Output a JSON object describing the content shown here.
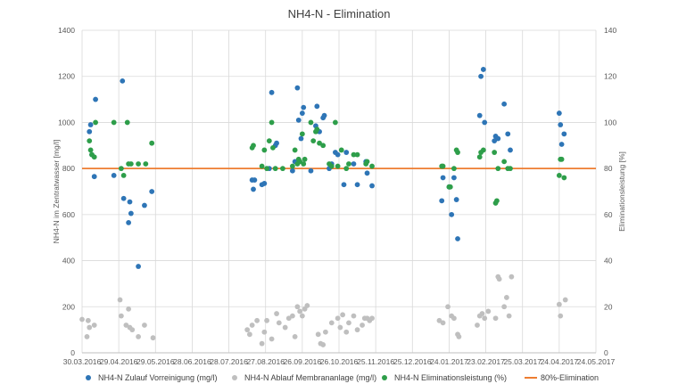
{
  "chart_data": {
    "type": "scatter",
    "title": "NH4-N - Elimination",
    "ylabel": "NH4-N im Zentratwasser [mg/l]",
    "y2label": "Eliminationsleistung [%]",
    "xlabel": "",
    "x_range": [
      "2016-03-30",
      "2017-05-24"
    ],
    "x_ticks": [
      "30.03.2016",
      "29.04.2016",
      "29.05.2016",
      "28.06.2016",
      "28.07.2016",
      "27.08.2016",
      "26.09.2016",
      "26.10.2016",
      "25.11.2016",
      "25.12.2016",
      "24.01.2017",
      "23.02.2017",
      "25.03.2017",
      "24.04.2017",
      "24.05.2017"
    ],
    "ylim": [
      0,
      1400
    ],
    "y_ticks": [
      0,
      200,
      400,
      600,
      800,
      1000,
      1200,
      1400
    ],
    "y2lim": [
      0,
      140
    ],
    "y2_ticks": [
      0,
      20,
      40,
      60,
      80,
      100,
      120,
      140
    ],
    "grid": true,
    "legend_position": "bottom",
    "colors": {
      "zulauf": "#2E75B6",
      "ablauf": "#BFBFBF",
      "elim": "#2E9E4A",
      "line80": "#ED7D31",
      "grid": "#D9D9D9",
      "axis": "#BFBFBF"
    },
    "series": [
      {
        "name": "NH4-N Zulauf Vorreinigung (mg/l)",
        "axis": "left",
        "marker": "dot",
        "color": "#2E75B6",
        "points": [
          [
            "2016-04-05",
            960
          ],
          [
            "2016-04-06",
            990
          ],
          [
            "2016-04-07",
            860
          ],
          [
            "2016-04-09",
            765
          ],
          [
            "2016-04-10",
            1100
          ],
          [
            "2016-04-25",
            770
          ],
          [
            "2016-05-02",
            1180
          ],
          [
            "2016-05-03",
            670
          ],
          [
            "2016-05-07",
            565
          ],
          [
            "2016-05-08",
            655
          ],
          [
            "2016-05-09",
            605
          ],
          [
            "2016-05-15",
            375
          ],
          [
            "2016-05-20",
            640
          ],
          [
            "2016-05-26",
            700
          ],
          [
            "2016-08-16",
            750
          ],
          [
            "2016-08-17",
            710
          ],
          [
            "2016-08-18",
            750
          ],
          [
            "2016-08-24",
            730
          ],
          [
            "2016-08-26",
            735
          ],
          [
            "2016-08-30",
            800
          ],
          [
            "2016-09-01",
            1130
          ],
          [
            "2016-09-04",
            900
          ],
          [
            "2016-09-05",
            910
          ],
          [
            "2016-09-18",
            790
          ],
          [
            "2016-09-20",
            830
          ],
          [
            "2016-09-22",
            1150
          ],
          [
            "2016-09-23",
            1010
          ],
          [
            "2016-09-25",
            930
          ],
          [
            "2016-09-26",
            1040
          ],
          [
            "2016-09-27",
            1065
          ],
          [
            "2016-10-03",
            790
          ],
          [
            "2016-10-07",
            985
          ],
          [
            "2016-10-08",
            1070
          ],
          [
            "2016-10-10",
            960
          ],
          [
            "2016-10-13",
            1020
          ],
          [
            "2016-10-14",
            1030
          ],
          [
            "2016-10-18",
            800
          ],
          [
            "2016-10-20",
            820
          ],
          [
            "2016-10-23",
            870
          ],
          [
            "2016-10-25",
            860
          ],
          [
            "2016-10-30",
            730
          ],
          [
            "2016-11-01",
            870
          ],
          [
            "2016-11-07",
            820
          ],
          [
            "2016-11-10",
            730
          ],
          [
            "2016-11-17",
            830
          ],
          [
            "2016-11-18",
            780
          ],
          [
            "2016-11-22",
            725
          ],
          [
            "2017-01-18",
            660
          ],
          [
            "2017-01-19",
            760
          ],
          [
            "2017-01-24",
            720
          ],
          [
            "2017-01-26",
            600
          ],
          [
            "2017-01-28",
            760
          ],
          [
            "2017-01-30",
            665
          ],
          [
            "2017-01-31",
            495
          ],
          [
            "2017-02-18",
            1030
          ],
          [
            "2017-02-19",
            1200
          ],
          [
            "2017-02-21",
            1230
          ],
          [
            "2017-02-22",
            1000
          ],
          [
            "2017-03-02",
            920
          ],
          [
            "2017-03-03",
            940
          ],
          [
            "2017-03-05",
            930
          ],
          [
            "2017-03-10",
            1080
          ],
          [
            "2017-03-13",
            950
          ],
          [
            "2017-03-15",
            880
          ],
          [
            "2017-04-24",
            1040
          ],
          [
            "2017-04-25",
            990
          ],
          [
            "2017-04-26",
            905
          ],
          [
            "2017-04-28",
            950
          ]
        ]
      },
      {
        "name": "NH4-N Ablauf Membrananlage (mg/l)",
        "axis": "left",
        "marker": "dot",
        "color": "#BFBFBF",
        "points": [
          [
            "2016-03-30",
            145
          ],
          [
            "2016-04-03",
            70
          ],
          [
            "2016-04-04",
            140
          ],
          [
            "2016-04-05",
            110
          ],
          [
            "2016-04-09",
            120
          ],
          [
            "2016-04-30",
            230
          ],
          [
            "2016-05-01",
            160
          ],
          [
            "2016-05-05",
            120
          ],
          [
            "2016-05-07",
            190
          ],
          [
            "2016-05-08",
            110
          ],
          [
            "2016-05-10",
            100
          ],
          [
            "2016-05-15",
            70
          ],
          [
            "2016-05-20",
            120
          ],
          [
            "2016-05-27",
            65
          ],
          [
            "2016-08-12",
            100
          ],
          [
            "2016-08-14",
            80
          ],
          [
            "2016-08-16",
            120
          ],
          [
            "2016-08-20",
            140
          ],
          [
            "2016-08-24",
            40
          ],
          [
            "2016-08-26",
            90
          ],
          [
            "2016-08-28",
            140
          ],
          [
            "2016-09-01",
            60
          ],
          [
            "2016-09-05",
            170
          ],
          [
            "2016-09-07",
            130
          ],
          [
            "2016-09-12",
            110
          ],
          [
            "2016-09-15",
            150
          ],
          [
            "2016-09-18",
            160
          ],
          [
            "2016-09-20",
            70
          ],
          [
            "2016-09-22",
            200
          ],
          [
            "2016-09-24",
            180
          ],
          [
            "2016-09-26",
            160
          ],
          [
            "2016-09-28",
            190
          ],
          [
            "2016-09-30",
            205
          ],
          [
            "2016-10-09",
            80
          ],
          [
            "2016-10-11",
            40
          ],
          [
            "2016-10-13",
            35
          ],
          [
            "2016-10-15",
            90
          ],
          [
            "2016-10-20",
            130
          ],
          [
            "2016-10-25",
            150
          ],
          [
            "2016-10-27",
            110
          ],
          [
            "2016-10-29",
            165
          ],
          [
            "2016-11-01",
            90
          ],
          [
            "2016-11-03",
            130
          ],
          [
            "2016-11-07",
            160
          ],
          [
            "2016-11-10",
            100
          ],
          [
            "2016-11-14",
            120
          ],
          [
            "2016-11-16",
            150
          ],
          [
            "2016-11-18",
            150
          ],
          [
            "2016-11-20",
            140
          ],
          [
            "2016-11-22",
            150
          ],
          [
            "2017-01-16",
            140
          ],
          [
            "2017-01-19",
            130
          ],
          [
            "2017-01-23",
            200
          ],
          [
            "2017-01-26",
            160
          ],
          [
            "2017-01-28",
            150
          ],
          [
            "2017-01-31",
            80
          ],
          [
            "2017-02-01",
            70
          ],
          [
            "2017-02-16",
            120
          ],
          [
            "2017-02-18",
            160
          ],
          [
            "2017-02-20",
            170
          ],
          [
            "2017-02-22",
            150
          ],
          [
            "2017-02-25",
            180
          ],
          [
            "2017-03-03",
            150
          ],
          [
            "2017-03-05",
            330
          ],
          [
            "2017-03-06",
            320
          ],
          [
            "2017-03-10",
            200
          ],
          [
            "2017-03-12",
            240
          ],
          [
            "2017-03-14",
            160
          ],
          [
            "2017-03-16",
            330
          ],
          [
            "2017-04-24",
            210
          ],
          [
            "2017-04-25",
            160
          ],
          [
            "2017-04-29",
            230
          ]
        ]
      },
      {
        "name": "NH4-N Eliminationsleistung (%)",
        "axis": "right",
        "marker": "dot",
        "color": "#2E9E4A",
        "points": [
          [
            "2016-04-05",
            92
          ],
          [
            "2016-04-06",
            88
          ],
          [
            "2016-04-07",
            86
          ],
          [
            "2016-04-09",
            85
          ],
          [
            "2016-04-10",
            100
          ],
          [
            "2016-04-25",
            100
          ],
          [
            "2016-05-01",
            80
          ],
          [
            "2016-05-03",
            77
          ],
          [
            "2016-05-06",
            100
          ],
          [
            "2016-05-07",
            82
          ],
          [
            "2016-05-09",
            82
          ],
          [
            "2016-05-15",
            82
          ],
          [
            "2016-05-21",
            82
          ],
          [
            "2016-05-26",
            91
          ],
          [
            "2016-08-16",
            89
          ],
          [
            "2016-08-17",
            90
          ],
          [
            "2016-08-24",
            81
          ],
          [
            "2016-08-26",
            88
          ],
          [
            "2016-08-28",
            80
          ],
          [
            "2016-08-30",
            92
          ],
          [
            "2016-09-01",
            100
          ],
          [
            "2016-09-02",
            89
          ],
          [
            "2016-09-04",
            80
          ],
          [
            "2016-09-10",
            80
          ],
          [
            "2016-09-18",
            81
          ],
          [
            "2016-09-20",
            88
          ],
          [
            "2016-09-22",
            82
          ],
          [
            "2016-09-23",
            84
          ],
          [
            "2016-09-24",
            83
          ],
          [
            "2016-09-26",
            95
          ],
          [
            "2016-09-27",
            82
          ],
          [
            "2016-09-28",
            84
          ],
          [
            "2016-10-03",
            100
          ],
          [
            "2016-10-05",
            92
          ],
          [
            "2016-10-07",
            96
          ],
          [
            "2016-10-08",
            97
          ],
          [
            "2016-10-10",
            91
          ],
          [
            "2016-10-13",
            90
          ],
          [
            "2016-10-18",
            82
          ],
          [
            "2016-10-20",
            81
          ],
          [
            "2016-10-23",
            100
          ],
          [
            "2016-10-25",
            81
          ],
          [
            "2016-10-28",
            88
          ],
          [
            "2016-11-01",
            80
          ],
          [
            "2016-11-03",
            82
          ],
          [
            "2016-11-07",
            86
          ],
          [
            "2016-11-10",
            86
          ],
          [
            "2016-11-17",
            82
          ],
          [
            "2016-11-18",
            83
          ],
          [
            "2016-11-22",
            81
          ],
          [
            "2017-01-18",
            81
          ],
          [
            "2017-01-19",
            81
          ],
          [
            "2017-01-24",
            72
          ],
          [
            "2017-01-25",
            72
          ],
          [
            "2017-01-28",
            80
          ],
          [
            "2017-01-30",
            88
          ],
          [
            "2017-01-31",
            87
          ],
          [
            "2017-02-18",
            85
          ],
          [
            "2017-02-19",
            87
          ],
          [
            "2017-02-21",
            88
          ],
          [
            "2017-03-02",
            87
          ],
          [
            "2017-03-03",
            65
          ],
          [
            "2017-03-04",
            66
          ],
          [
            "2017-03-05",
            80
          ],
          [
            "2017-03-10",
            83
          ],
          [
            "2017-03-13",
            80
          ],
          [
            "2017-03-15",
            80
          ],
          [
            "2017-04-24",
            77
          ],
          [
            "2017-04-25",
            84
          ],
          [
            "2017-04-26",
            84
          ],
          [
            "2017-04-28",
            76
          ]
        ]
      },
      {
        "name": "80%-Elimination",
        "axis": "right",
        "marker": "line",
        "color": "#ED7D31",
        "value": 80
      }
    ]
  }
}
